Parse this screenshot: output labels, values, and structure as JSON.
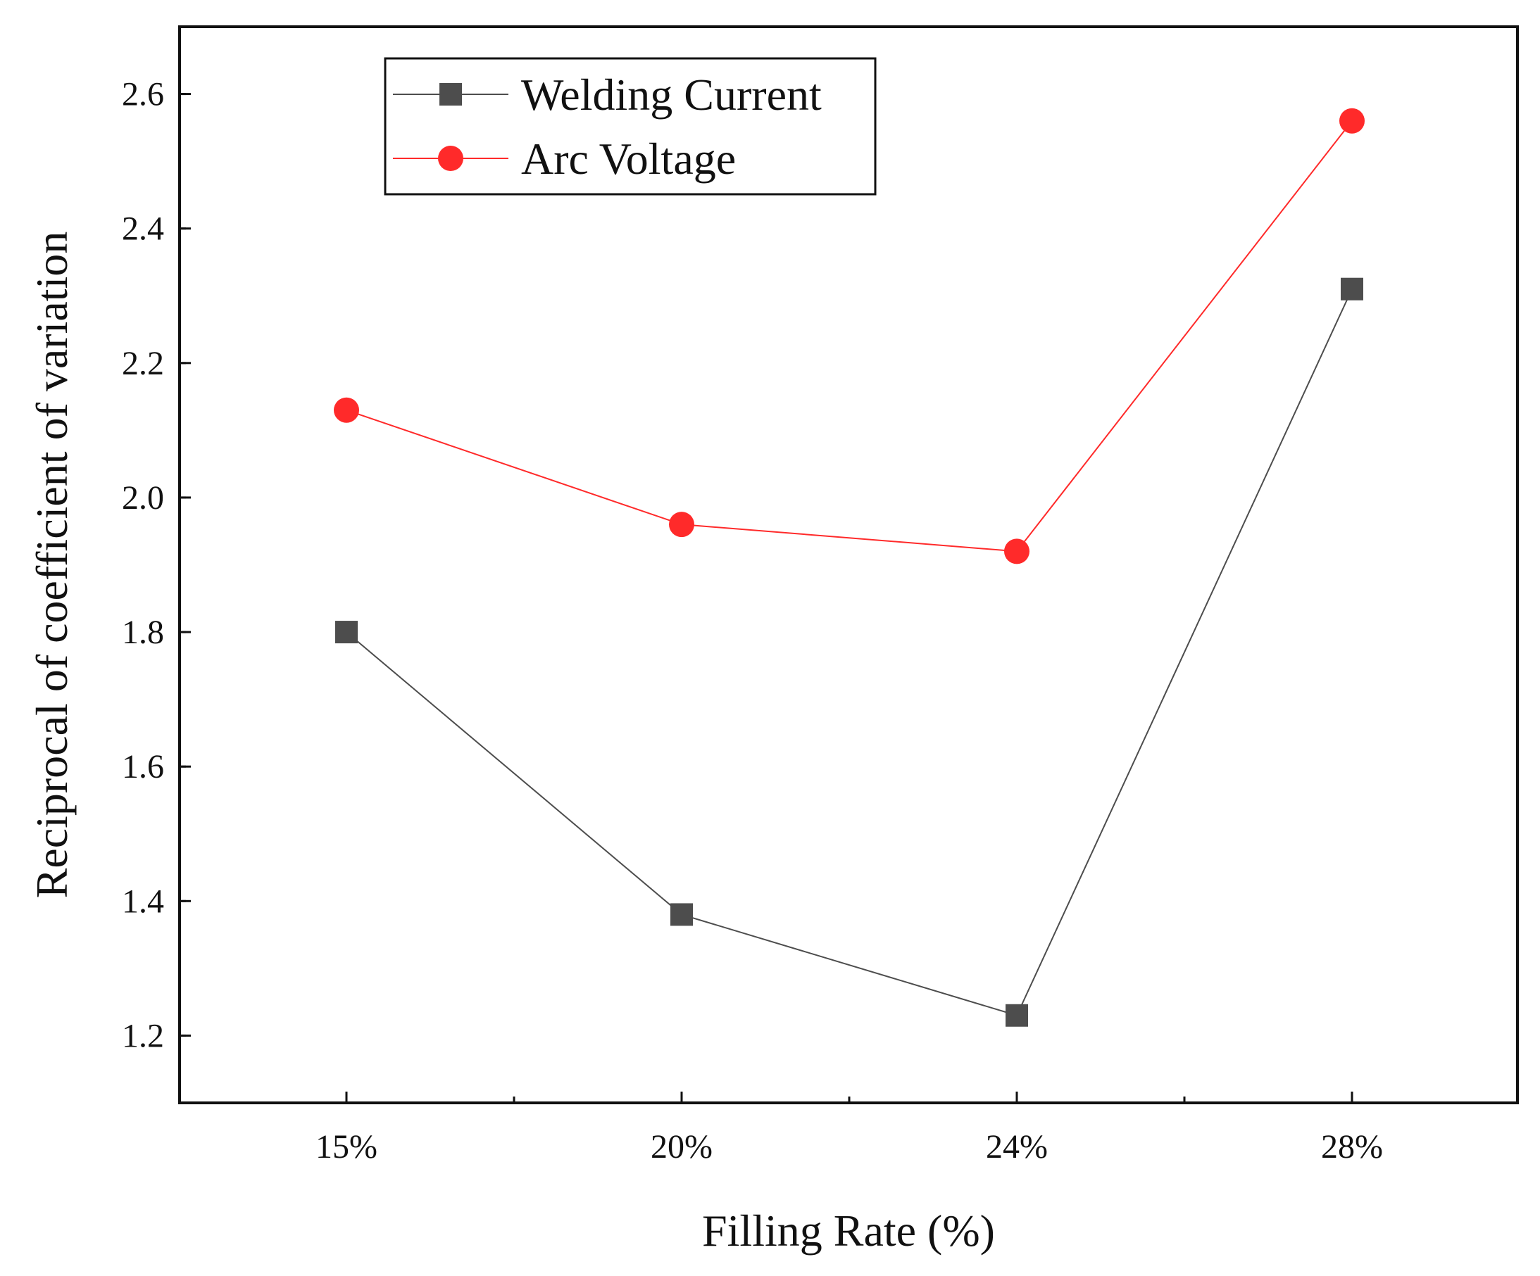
{
  "chart_data": {
    "type": "line",
    "title": "",
    "xlabel": "Filling Rate (%)",
    "ylabel": "Reciprocal of coefficient of variation",
    "categories": [
      "15%",
      "20%",
      "24%",
      "28%"
    ],
    "ylim": [
      1.1,
      2.7
    ],
    "yticks": [
      1.2,
      1.4,
      1.6,
      1.8,
      2.0,
      2.2,
      2.4,
      2.6
    ],
    "ytick_labels": [
      "1.2",
      "1.4",
      "1.6",
      "1.8",
      "2.0",
      "2.2",
      "2.4",
      "2.6"
    ],
    "grid": false,
    "legend_position": "top-left",
    "series": [
      {
        "name": "Welding Current",
        "marker": "square",
        "color": "#4d4d4d",
        "values": [
          1.8,
          1.38,
          1.23,
          2.31
        ]
      },
      {
        "name": "Arc Voltage",
        "marker": "circle",
        "color": "#ff2a2a",
        "values": [
          2.13,
          1.96,
          1.92,
          2.56
        ]
      }
    ]
  }
}
